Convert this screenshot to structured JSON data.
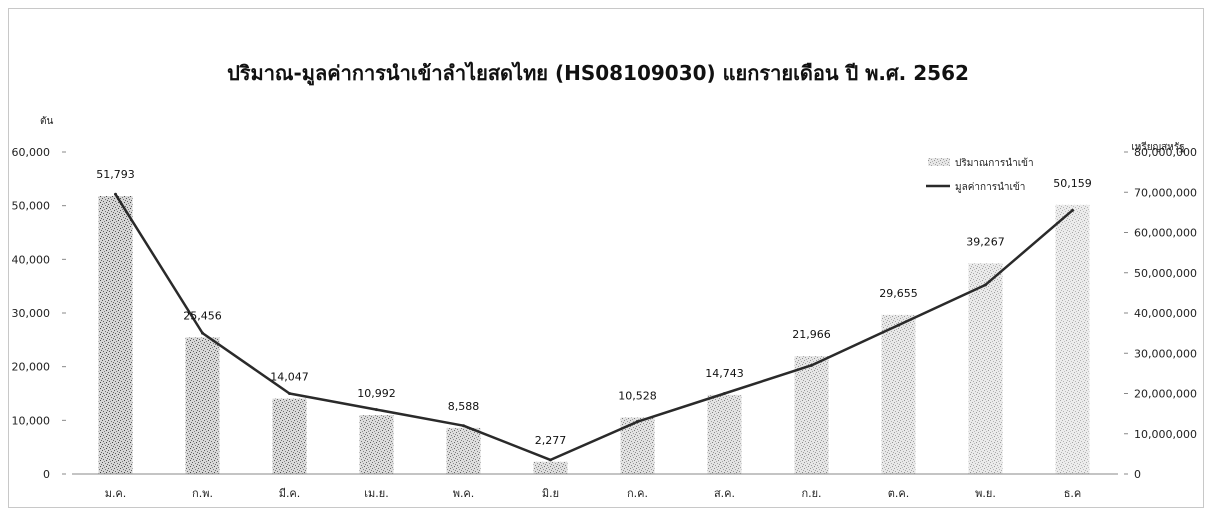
{
  "chart_data": {
    "type": "bar",
    "title": "ปริมาณ-มูลค่าการนำเข้าลำไยสดไทย (HS08109030) แยกรายเดือน ปี พ.ศ. 2562",
    "ylabel": "ตัน",
    "y2label": "เหรียญสหรัฐ",
    "categories": [
      "ม.ค.",
      "ก.พ.",
      "มี.ค.",
      "เม.ย.",
      "พ.ค.",
      "มิ.ย",
      "ก.ค.",
      "ส.ค.",
      "ก.ย.",
      "ต.ค.",
      "พ.ย.",
      "ธ.ค"
    ],
    "ylim": [
      0,
      60000
    ],
    "yticks": [
      "60,000",
      "50,000",
      "40,000",
      "30,000",
      "20,000",
      "10,000",
      "0"
    ],
    "y2lim": [
      0,
      80000000
    ],
    "y2ticks": [
      "80,000,000",
      "70,000,000",
      "60,000,000",
      "50,000,000",
      "40,000,000",
      "30,000,000",
      "20,000,000",
      "10,000,000",
      "0"
    ],
    "legend_position": "top-right",
    "series": [
      {
        "name": "ปริมาณการนำเข้า",
        "type": "bar",
        "axis": "left",
        "color": "#7a7a7a",
        "values": [
          51793,
          25456,
          14047,
          10992,
          8588,
          2277,
          10528,
          14743,
          21966,
          29655,
          39267,
          50159
        ],
        "labels": [
          "51,793",
          "25,456",
          "14,047",
          "10,992",
          "8,588",
          "2,277",
          "10,528",
          "14,743",
          "21,966",
          "29,655",
          "39,267",
          "50,159"
        ]
      },
      {
        "name": "มูลค่าการนำเข้า",
        "type": "line",
        "axis": "right",
        "color": "#2a2a2a",
        "values": [
          69500000,
          35000000,
          20000000,
          16000000,
          12000000,
          3500000,
          13000000,
          20000000,
          27000000,
          37000000,
          47000000,
          65500000
        ]
      }
    ]
  }
}
